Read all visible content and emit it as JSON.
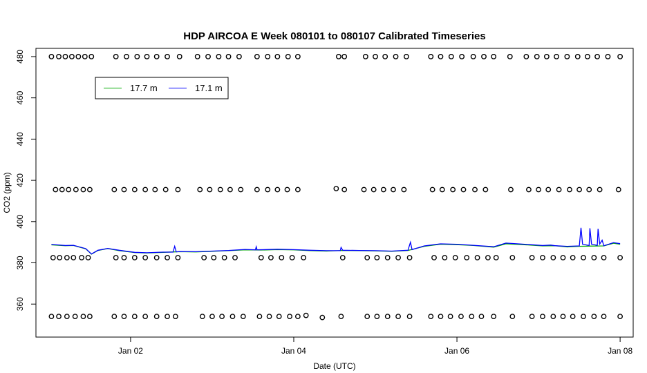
{
  "chart_data": {
    "type": "line",
    "title": "HDP AIRCOA E  Week 080101 to 080107  Calibrated Timeseries",
    "xlabel": "Date (UTC)",
    "ylabel": "CO2 (ppm)",
    "xlim": [
      0.84,
      7.16
    ],
    "ylim": [
      344,
      484
    ],
    "x_ticks": [
      {
        "value": 2,
        "label": "Jan 02"
      },
      {
        "value": 4,
        "label": "Jan 04"
      },
      {
        "value": 6,
        "label": "Jan 06"
      },
      {
        "value": 8,
        "label": "Jan 08"
      }
    ],
    "y_ticks": [
      360,
      380,
      400,
      420,
      440,
      460,
      480
    ],
    "legend": {
      "position": "top-left",
      "entries": [
        {
          "name": "17.7 m",
          "color": "#00aa00"
        },
        {
          "name": "17.1 m",
          "color": "#0000ff"
        }
      ]
    },
    "series": [
      {
        "name": "17.7 m",
        "color": "#00aa00",
        "points": [
          [
            1.03,
            388.7
          ],
          [
            1.2,
            388.3
          ],
          [
            1.3,
            388.4
          ],
          [
            1.45,
            386.8
          ],
          [
            1.52,
            384.2
          ],
          [
            1.6,
            386.0
          ],
          [
            1.72,
            386.9
          ],
          [
            1.86,
            385.9
          ],
          [
            2.05,
            385.0
          ],
          [
            2.2,
            384.8
          ],
          [
            2.4,
            385.1
          ],
          [
            2.6,
            385.4
          ],
          [
            2.8,
            385.3
          ],
          [
            3.0,
            385.6
          ],
          [
            3.2,
            385.9
          ],
          [
            3.4,
            386.3
          ],
          [
            3.6,
            386.2
          ],
          [
            3.8,
            386.4
          ],
          [
            4.0,
            386.3
          ],
          [
            4.2,
            385.9
          ],
          [
            4.4,
            385.7
          ],
          [
            4.6,
            386.0
          ],
          [
            4.8,
            385.9
          ],
          [
            5.0,
            385.8
          ],
          [
            5.2,
            385.6
          ],
          [
            5.4,
            386.0
          ],
          [
            5.6,
            388.0
          ],
          [
            5.8,
            389.0
          ],
          [
            6.0,
            388.8
          ],
          [
            6.2,
            388.4
          ],
          [
            6.45,
            387.6
          ],
          [
            6.6,
            389.2
          ],
          [
            6.75,
            388.9
          ],
          [
            6.9,
            388.6
          ],
          [
            7.05,
            388.2
          ],
          [
            7.2,
            388.3
          ],
          [
            7.35,
            387.7
          ],
          [
            7.5,
            388.0
          ],
          [
            7.62,
            388.1
          ],
          [
            7.8,
            388.2
          ],
          [
            7.92,
            389.5
          ],
          [
            8.0,
            389.0
          ]
        ]
      },
      {
        "name": "17.1 m",
        "color": "#0000ff",
        "points": [
          [
            1.03,
            388.9
          ],
          [
            1.2,
            388.4
          ],
          [
            1.3,
            388.5
          ],
          [
            1.45,
            386.9
          ],
          [
            1.52,
            384.3
          ],
          [
            1.6,
            386.1
          ],
          [
            1.72,
            387.0
          ],
          [
            1.86,
            386.1
          ],
          [
            2.05,
            385.1
          ],
          [
            2.2,
            384.9
          ],
          [
            2.4,
            385.2
          ],
          [
            2.52,
            385.2
          ],
          [
            2.54,
            388.0
          ],
          [
            2.56,
            385.3
          ],
          [
            2.6,
            385.5
          ],
          [
            2.8,
            385.4
          ],
          [
            3.0,
            385.7
          ],
          [
            3.2,
            386.0
          ],
          [
            3.4,
            386.5
          ],
          [
            3.53,
            386.3
          ],
          [
            3.54,
            387.8
          ],
          [
            3.55,
            386.3
          ],
          [
            3.8,
            386.6
          ],
          [
            4.0,
            386.4
          ],
          [
            4.2,
            386.1
          ],
          [
            4.4,
            385.9
          ],
          [
            4.57,
            385.9
          ],
          [
            4.58,
            387.5
          ],
          [
            4.6,
            386.1
          ],
          [
            4.8,
            386.0
          ],
          [
            5.0,
            385.9
          ],
          [
            5.2,
            385.7
          ],
          [
            5.4,
            386.1
          ],
          [
            5.43,
            390.0
          ],
          [
            5.45,
            386.4
          ],
          [
            5.6,
            388.2
          ],
          [
            5.8,
            389.2
          ],
          [
            6.0,
            389.0
          ],
          [
            6.2,
            388.5
          ],
          [
            6.45,
            387.8
          ],
          [
            6.6,
            389.6
          ],
          [
            6.75,
            389.2
          ],
          [
            6.9,
            388.8
          ],
          [
            7.05,
            388.4
          ],
          [
            7.15,
            388.6
          ],
          [
            7.2,
            388.3
          ],
          [
            7.35,
            388.0
          ],
          [
            7.5,
            388.2
          ],
          [
            7.52,
            397.0
          ],
          [
            7.54,
            389.0
          ],
          [
            7.62,
            388.4
          ],
          [
            7.63,
            396.8
          ],
          [
            7.65,
            389.0
          ],
          [
            7.72,
            388.5
          ],
          [
            7.73,
            396.5
          ],
          [
            7.75,
            389.1
          ],
          [
            7.78,
            391.0
          ],
          [
            7.8,
            388.3
          ],
          [
            7.92,
            389.8
          ],
          [
            8.0,
            389.3
          ]
        ]
      },
      {
        "name": "",
        "type": "scatter",
        "marker": "open-circle",
        "color": "#000000",
        "points": [
          [
            1.03,
            480
          ],
          [
            1.12,
            480
          ],
          [
            1.2,
            480
          ],
          [
            1.28,
            480
          ],
          [
            1.36,
            480
          ],
          [
            1.44,
            480
          ],
          [
            1.52,
            480
          ],
          [
            1.82,
            480
          ],
          [
            1.95,
            480
          ],
          [
            2.08,
            480
          ],
          [
            2.2,
            480
          ],
          [
            2.32,
            480
          ],
          [
            2.45,
            480
          ],
          [
            2.6,
            480
          ],
          [
            2.82,
            480
          ],
          [
            2.95,
            480
          ],
          [
            3.08,
            480
          ],
          [
            3.2,
            480
          ],
          [
            3.33,
            480
          ],
          [
            3.55,
            480
          ],
          [
            3.68,
            480
          ],
          [
            3.8,
            480
          ],
          [
            3.93,
            480
          ],
          [
            4.05,
            480
          ],
          [
            4.55,
            480
          ],
          [
            4.62,
            480
          ],
          [
            4.88,
            480
          ],
          [
            5.0,
            480
          ],
          [
            5.12,
            480
          ],
          [
            5.25,
            480
          ],
          [
            5.38,
            480
          ],
          [
            5.68,
            480
          ],
          [
            5.8,
            480
          ],
          [
            5.93,
            480
          ],
          [
            6.06,
            480
          ],
          [
            6.2,
            480
          ],
          [
            6.33,
            480
          ],
          [
            6.45,
            480
          ],
          [
            6.65,
            480
          ],
          [
            6.85,
            480
          ],
          [
            6.98,
            480
          ],
          [
            7.1,
            480
          ],
          [
            7.22,
            480
          ],
          [
            7.35,
            480
          ],
          [
            7.48,
            480
          ],
          [
            7.6,
            480
          ],
          [
            7.72,
            480
          ],
          [
            7.85,
            480
          ],
          [
            8.0,
            480
          ],
          [
            1.08,
            415.5
          ],
          [
            1.16,
            415.5
          ],
          [
            1.24,
            415.5
          ],
          [
            1.33,
            415.5
          ],
          [
            1.42,
            415.5
          ],
          [
            1.5,
            415.5
          ],
          [
            1.8,
            415.5
          ],
          [
            1.92,
            415.5
          ],
          [
            2.05,
            415.5
          ],
          [
            2.18,
            415.5
          ],
          [
            2.3,
            415.5
          ],
          [
            2.43,
            415.5
          ],
          [
            2.58,
            415.5
          ],
          [
            2.85,
            415.5
          ],
          [
            2.97,
            415.5
          ],
          [
            3.1,
            415.5
          ],
          [
            3.22,
            415.5
          ],
          [
            3.35,
            415.5
          ],
          [
            3.55,
            415.5
          ],
          [
            3.68,
            415.5
          ],
          [
            3.8,
            415.5
          ],
          [
            3.92,
            415.5
          ],
          [
            4.05,
            415.5
          ],
          [
            4.52,
            416
          ],
          [
            4.62,
            415.5
          ],
          [
            4.86,
            415.5
          ],
          [
            4.98,
            415.5
          ],
          [
            5.1,
            415.5
          ],
          [
            5.22,
            415.5
          ],
          [
            5.35,
            415.5
          ],
          [
            5.7,
            415.5
          ],
          [
            5.82,
            415.5
          ],
          [
            5.95,
            415.5
          ],
          [
            6.08,
            415.5
          ],
          [
            6.22,
            415.5
          ],
          [
            6.35,
            415.5
          ],
          [
            6.66,
            415.5
          ],
          [
            6.88,
            415.5
          ],
          [
            7.0,
            415.5
          ],
          [
            7.12,
            415.5
          ],
          [
            7.25,
            415.5
          ],
          [
            7.38,
            415.5
          ],
          [
            7.5,
            415.5
          ],
          [
            7.62,
            415.5
          ],
          [
            7.75,
            415.5
          ],
          [
            7.98,
            415.5
          ],
          [
            1.05,
            382.5
          ],
          [
            1.13,
            382.5
          ],
          [
            1.22,
            382.5
          ],
          [
            1.3,
            382.5
          ],
          [
            1.4,
            382.5
          ],
          [
            1.48,
            382.5
          ],
          [
            1.82,
            382.5
          ],
          [
            1.92,
            382.5
          ],
          [
            2.05,
            382.5
          ],
          [
            2.18,
            382.5
          ],
          [
            2.32,
            382.5
          ],
          [
            2.45,
            382.5
          ],
          [
            2.58,
            382.5
          ],
          [
            2.9,
            382.5
          ],
          [
            3.02,
            382.5
          ],
          [
            3.15,
            382.5
          ],
          [
            3.28,
            382.5
          ],
          [
            3.6,
            382.5
          ],
          [
            3.72,
            382.5
          ],
          [
            3.85,
            382.5
          ],
          [
            3.98,
            382.5
          ],
          [
            4.12,
            382.5
          ],
          [
            4.6,
            382.5
          ],
          [
            4.9,
            382.5
          ],
          [
            5.02,
            382.5
          ],
          [
            5.15,
            382.5
          ],
          [
            5.28,
            382.5
          ],
          [
            5.42,
            382.5
          ],
          [
            5.72,
            382.5
          ],
          [
            5.85,
            382.5
          ],
          [
            5.98,
            382.5
          ],
          [
            6.12,
            382.5
          ],
          [
            6.25,
            382.5
          ],
          [
            6.38,
            382.5
          ],
          [
            6.48,
            382.5
          ],
          [
            6.68,
            382.5
          ],
          [
            6.92,
            382.5
          ],
          [
            7.05,
            382.5
          ],
          [
            7.18,
            382.5
          ],
          [
            7.3,
            382.5
          ],
          [
            7.42,
            382.5
          ],
          [
            7.55,
            382.5
          ],
          [
            7.68,
            382.5
          ],
          [
            7.8,
            382.5
          ],
          [
            8.0,
            382.5
          ],
          [
            1.03,
            354
          ],
          [
            1.12,
            354
          ],
          [
            1.22,
            354
          ],
          [
            1.32,
            354
          ],
          [
            1.42,
            354
          ],
          [
            1.5,
            354
          ],
          [
            1.8,
            354
          ],
          [
            1.92,
            354
          ],
          [
            2.05,
            354
          ],
          [
            2.18,
            354
          ],
          [
            2.32,
            354
          ],
          [
            2.45,
            354
          ],
          [
            2.55,
            354
          ],
          [
            2.88,
            354
          ],
          [
            3.0,
            354
          ],
          [
            3.12,
            354
          ],
          [
            3.25,
            354
          ],
          [
            3.38,
            354
          ],
          [
            3.58,
            354
          ],
          [
            3.7,
            354
          ],
          [
            3.82,
            354
          ],
          [
            3.95,
            354
          ],
          [
            4.05,
            354
          ],
          [
            4.15,
            354.5
          ],
          [
            4.35,
            353.5
          ],
          [
            4.58,
            354
          ],
          [
            4.9,
            354
          ],
          [
            5.02,
            354
          ],
          [
            5.15,
            354
          ],
          [
            5.28,
            354
          ],
          [
            5.42,
            354
          ],
          [
            5.68,
            354
          ],
          [
            5.8,
            354
          ],
          [
            5.92,
            354
          ],
          [
            6.05,
            354
          ],
          [
            6.18,
            354
          ],
          [
            6.3,
            354
          ],
          [
            6.45,
            354
          ],
          [
            6.68,
            354
          ],
          [
            6.92,
            354
          ],
          [
            7.05,
            354
          ],
          [
            7.18,
            354
          ],
          [
            7.3,
            354
          ],
          [
            7.42,
            354
          ],
          [
            7.55,
            354
          ],
          [
            7.68,
            354
          ],
          [
            7.8,
            354
          ],
          [
            8.0,
            354
          ]
        ]
      }
    ]
  }
}
